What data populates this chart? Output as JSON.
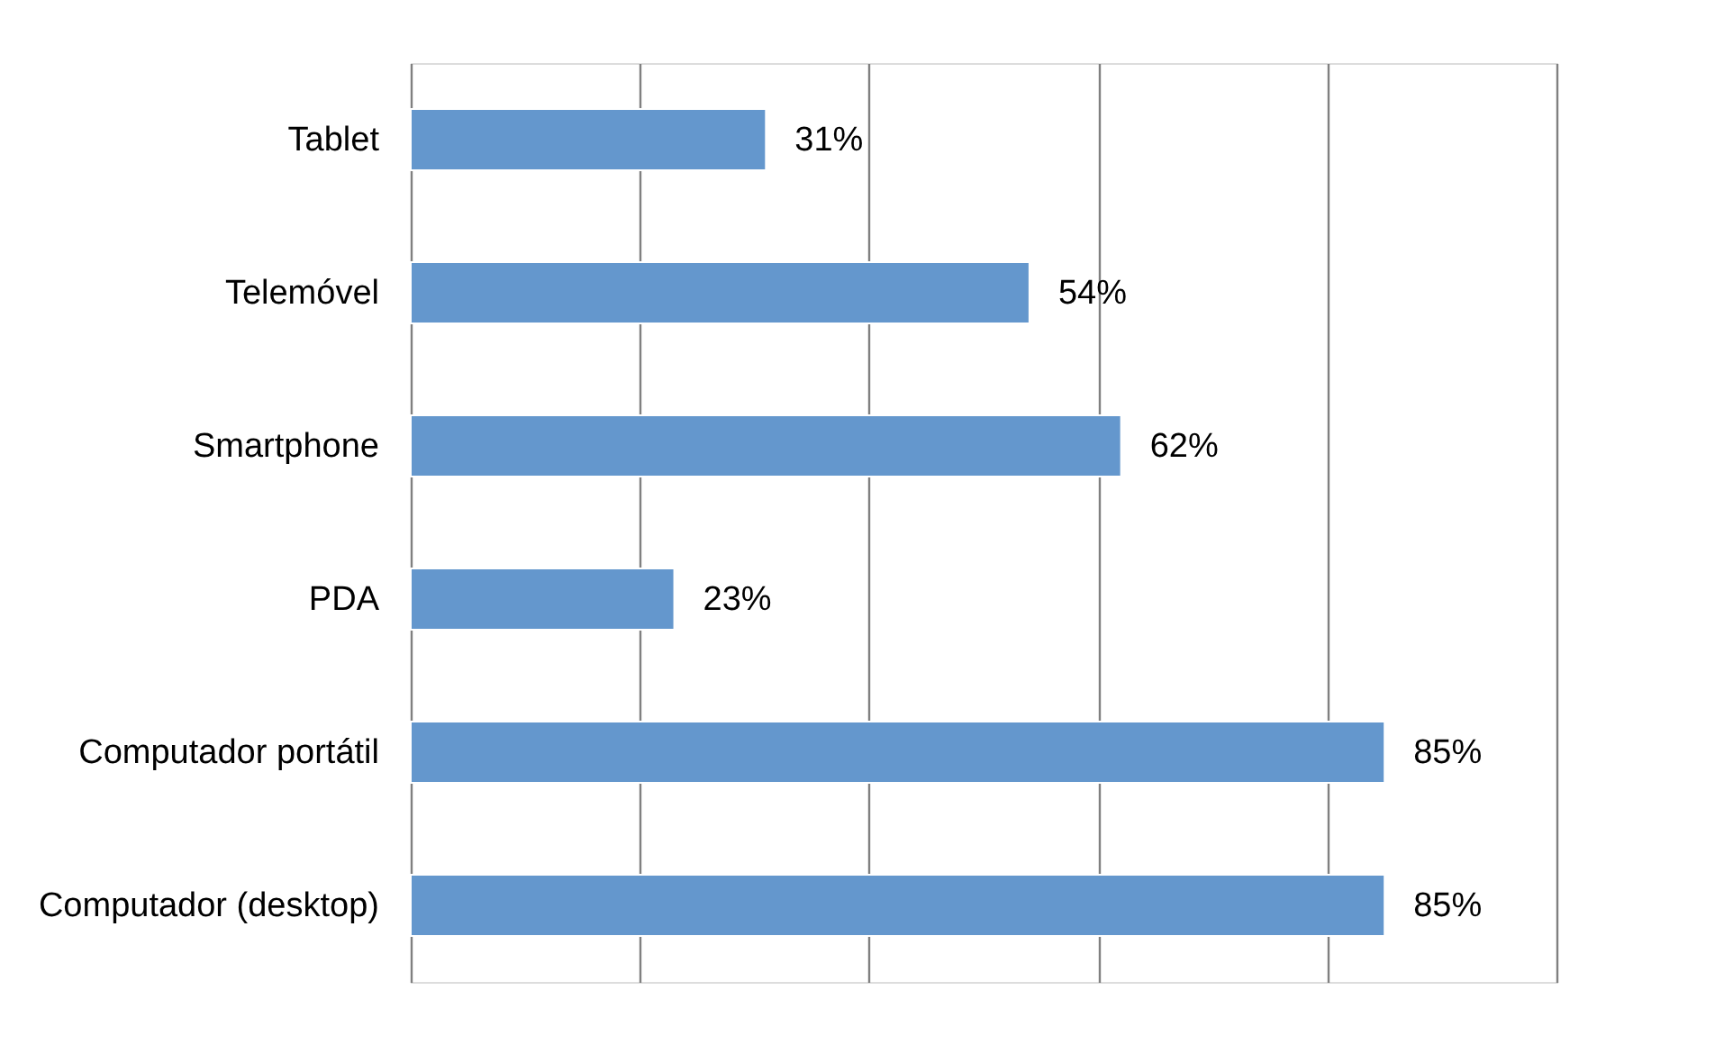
{
  "chart_data": {
    "type": "bar",
    "orientation": "horizontal",
    "categories": [
      "Tablet",
      "Telemóvel",
      "Smartphone",
      "PDA",
      "Computador portátil",
      "Computador (desktop)"
    ],
    "values": [
      31,
      54,
      62,
      23,
      85,
      85
    ],
    "value_labels": [
      "31%",
      "54%",
      "62%",
      "23%",
      "85%",
      "85%"
    ],
    "color": "#6497cd",
    "xlim": [
      0,
      100
    ],
    "xticks": [
      {
        "value": 0,
        "label": null
      },
      {
        "value": 20,
        "label": null
      },
      {
        "value": 40,
        "label": null
      },
      {
        "value": 60,
        "label": null
      },
      {
        "value": 80,
        "label": null
      },
      {
        "value": 100,
        "label": null
      }
    ],
    "tick_labels": "y",
    "grid": "x"
  }
}
